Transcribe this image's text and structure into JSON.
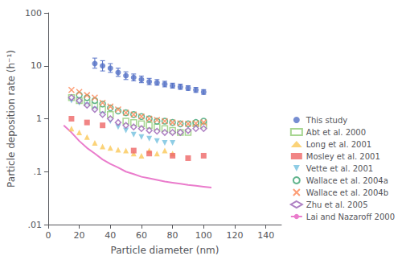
{
  "chart_data": {
    "type": "scatter",
    "xlabel": "Particle diameter (nm)",
    "ylabel": "Particle deposition rate (h⁻¹)",
    "xlim": [
      0,
      150
    ],
    "xticks": [
      0,
      20,
      40,
      60,
      80,
      100,
      120,
      140
    ],
    "ylim": [
      0.01,
      100
    ],
    "yticks": [
      {
        "value": 0.01,
        "label": ".01"
      },
      {
        "value": 0.1,
        "label": ".1"
      },
      1,
      10,
      100
    ],
    "log": "y",
    "grid": false,
    "legend": "lower right",
    "series": [
      {
        "name": "This study",
        "marker": "circle",
        "x": [
          30,
          35,
          40,
          45,
          50,
          55,
          60,
          65,
          70,
          75,
          80,
          85,
          90,
          95,
          100
        ],
        "values": [
          11,
          10,
          9,
          7.5,
          6.5,
          6,
          5.5,
          5,
          4.8,
          4.5,
          4.2,
          4.0,
          3.8,
          3.5,
          3.2
        ],
        "yerr_low": [
          2,
          2,
          1.5,
          1.2,
          1.0,
          0.8,
          0.7,
          0.6,
          0.5,
          0.5,
          0.4,
          0.4,
          0.35,
          0.35,
          0.3
        ],
        "yerr_high": [
          3,
          2.5,
          2,
          1.5,
          1.2,
          1.0,
          0.9,
          0.8,
          0.7,
          0.6,
          0.5,
          0.5,
          0.4,
          0.4,
          0.35
        ]
      },
      {
        "name": "Abt et al. 2000",
        "marker": "square-open",
        "x": [
          15,
          20,
          25,
          30,
          35,
          40,
          50,
          55,
          60,
          65,
          70,
          75,
          80,
          85,
          90,
          95,
          100
        ],
        "values": [
          2.5,
          2.2,
          2.0,
          1.8,
          1.5,
          1.2,
          0.9,
          0.85,
          0.8,
          0.75,
          0.7,
          0.65,
          0.6,
          0.55,
          0.55,
          0.8,
          0.75
        ]
      },
      {
        "name": "Long et al. 2001",
        "marker": "triangle",
        "x": [
          15,
          20,
          25,
          30,
          35,
          40,
          45,
          50,
          55,
          60,
          65,
          70,
          75,
          80
        ],
        "values": [
          0.65,
          0.55,
          0.45,
          0.35,
          0.3,
          0.28,
          0.26,
          0.25,
          0.22,
          0.2,
          0.25,
          0.22,
          0.25,
          0.22
        ]
      },
      {
        "name": "Mosley et al. 2001",
        "marker": "square",
        "x": [
          15,
          25,
          35,
          55,
          65,
          80,
          90,
          100
        ],
        "values": [
          1.0,
          0.85,
          0.75,
          0.25,
          0.22,
          0.2,
          0.18,
          0.2
        ]
      },
      {
        "name": "Vette et al. 2001",
        "marker": "triangle-down",
        "x": [
          15,
          20,
          25,
          30,
          35,
          40,
          45,
          50,
          55,
          60,
          65,
          70,
          75,
          80
        ],
        "values": [
          2.2,
          2.0,
          1.8,
          1.5,
          1.2,
          0.9,
          0.7,
          0.6,
          0.5,
          0.45,
          0.42,
          0.38,
          0.35,
          0.35
        ]
      },
      {
        "name": "Wallace et al. 2004a",
        "marker": "circle-open",
        "x": [
          20,
          25,
          30,
          35,
          40,
          45,
          50,
          55,
          60,
          65,
          70,
          75,
          80,
          85,
          90,
          95,
          100
        ],
        "values": [
          2.8,
          2.5,
          2.2,
          1.9,
          1.6,
          1.4,
          1.3,
          1.2,
          1.1,
          1.0,
          0.9,
          0.9,
          0.85,
          0.8,
          0.8,
          0.85,
          0.9
        ]
      },
      {
        "name": "Wallace et al. 2004b",
        "marker": "x",
        "x": [
          15,
          20,
          25,
          30,
          35,
          40,
          45,
          50,
          55,
          60,
          65,
          70,
          75,
          80,
          85,
          90,
          95,
          100
        ],
        "values": [
          3.5,
          3.2,
          2.8,
          2.5,
          2.0,
          1.7,
          1.5,
          1.3,
          1.2,
          1.1,
          1.0,
          0.95,
          0.9,
          0.85,
          0.82,
          0.8,
          0.82,
          0.85
        ]
      },
      {
        "name": "Zhu et al. 2005",
        "marker": "diamond-open",
        "x": [
          15,
          20,
          25,
          30,
          35,
          40,
          45,
          50,
          55,
          60,
          65,
          70,
          75,
          80,
          85,
          90,
          95,
          100
        ],
        "values": [
          2.5,
          2.2,
          1.8,
          1.5,
          1.2,
          1.0,
          0.85,
          0.75,
          0.7,
          0.65,
          0.6,
          0.58,
          0.55,
          0.55,
          0.55,
          0.6,
          0.65,
          0.65
        ]
      },
      {
        "name": "Lai and Nazaroff 2000",
        "type": "line",
        "line_style": "solid",
        "x": [
          10,
          15,
          20,
          25,
          30,
          35,
          40,
          45,
          50,
          55,
          60,
          65,
          70,
          75,
          80,
          85,
          90,
          95,
          100,
          105
        ],
        "values": [
          0.75,
          0.55,
          0.38,
          0.28,
          0.22,
          0.17,
          0.14,
          0.12,
          0.1,
          0.09,
          0.08,
          0.075,
          0.07,
          0.065,
          0.062,
          0.059,
          0.056,
          0.054,
          0.052,
          0.05
        ]
      }
    ]
  }
}
